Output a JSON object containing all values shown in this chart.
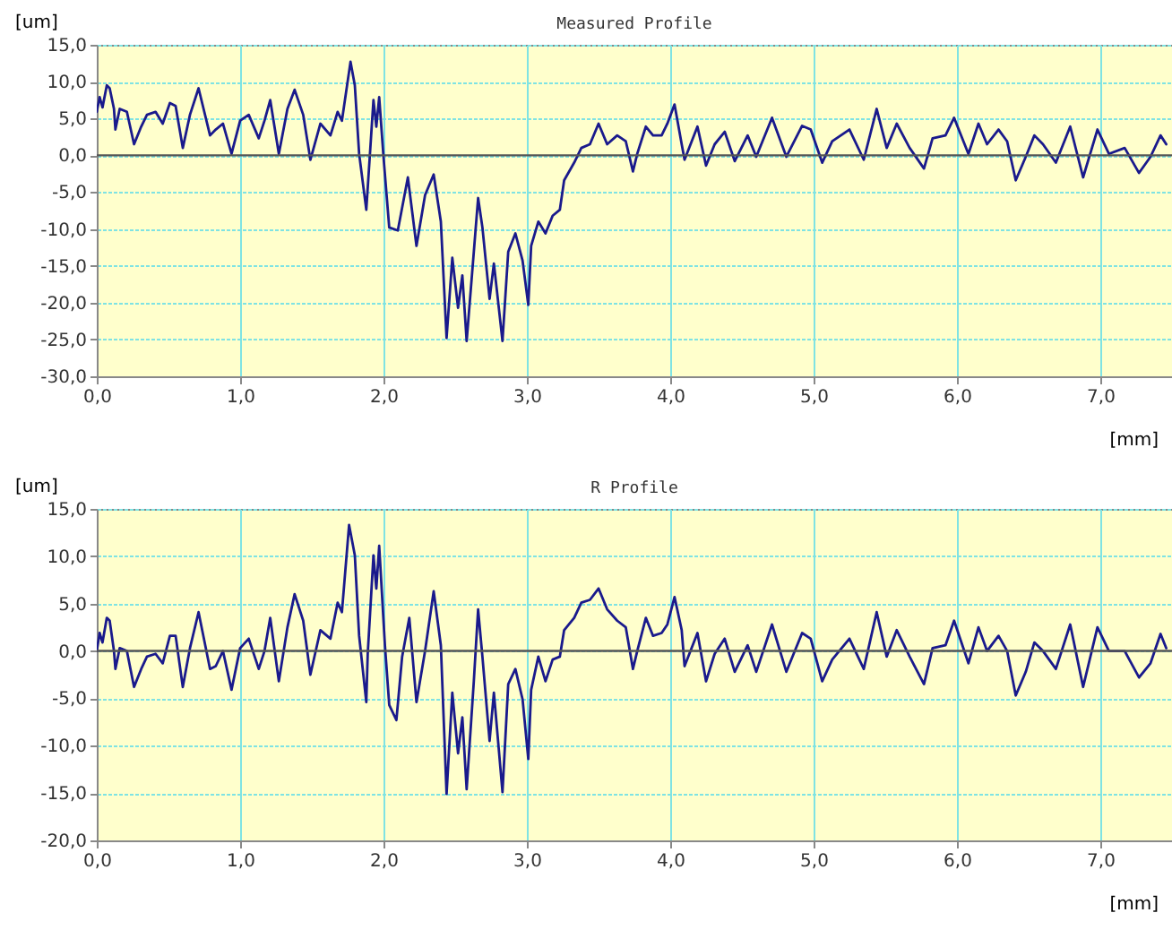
{
  "chart_data": [
    {
      "type": "line",
      "title": "Measured Profile",
      "xlabel": "[mm]",
      "ylabel": "[um]",
      "grid": true,
      "line_style": "solid",
      "xlim": [
        0,
        7.5
      ],
      "xticks": [
        {
          "value": 0,
          "label": "0,0"
        },
        {
          "value": 1,
          "label": "1,0"
        },
        {
          "value": 2,
          "label": "2,0"
        },
        {
          "value": 3,
          "label": "3,0"
        },
        {
          "value": 4,
          "label": "4,0"
        },
        {
          "value": 5,
          "label": "5,0"
        },
        {
          "value": 6,
          "label": "6,0"
        },
        {
          "value": 7,
          "label": "7,0"
        }
      ],
      "ylim": [
        -30,
        15
      ],
      "yticks": [
        {
          "value": -30,
          "label": "-30,0"
        },
        {
          "value": -25,
          "label": "-25,0"
        },
        {
          "value": -20,
          "label": "-20,0"
        },
        {
          "value": -15,
          "label": "-15,0"
        },
        {
          "value": -10,
          "label": "-10,0"
        },
        {
          "value": -5,
          "label": "-5,0"
        },
        {
          "value": 0,
          "label": "0,0"
        },
        {
          "value": 5,
          "label": "5,0"
        },
        {
          "value": 10,
          "label": "10,0"
        },
        {
          "value": 15,
          "label": "15,0"
        }
      ],
      "ref_lines": [
        {
          "axis": "y",
          "value": 0,
          "color": "#555555"
        }
      ],
      "x": [
        0,
        0.02,
        0.04,
        0.07,
        0.09,
        0.12,
        0.13,
        0.16,
        0.21,
        0.26,
        0.31,
        0.35,
        0.41,
        0.46,
        0.51,
        0.55,
        0.6,
        0.65,
        0.71,
        0.79,
        0.83,
        0.88,
        0.94,
        1,
        1.06,
        1.13,
        1.17,
        1.21,
        1.27,
        1.33,
        1.38,
        1.44,
        1.49,
        1.56,
        1.63,
        1.68,
        1.71,
        1.77,
        1.8,
        1.83,
        1.88,
        1.93,
        1.95,
        1.97,
        2,
        2.04,
        2.1,
        2.17,
        2.23,
        2.29,
        2.35,
        2.4,
        2.44,
        2.48,
        2.52,
        2.55,
        2.58,
        2.63,
        2.66,
        2.69,
        2.74,
        2.77,
        2.83,
        2.87,
        2.92,
        2.97,
        3.01,
        3.03,
        3.08,
        3.13,
        3.18,
        3.23,
        3.26,
        3.33,
        3.38,
        3.44,
        3.5,
        3.56,
        3.63,
        3.69,
        3.74,
        3.77,
        3.83,
        3.88,
        3.94,
        3.98,
        4.03,
        4.08,
        4.1,
        4.19,
        4.25,
        4.31,
        4.38,
        4.45,
        4.54,
        4.6,
        4.71,
        4.81,
        4.92,
        4.98,
        5.06,
        5.13,
        5.25,
        5.35,
        5.44,
        5.51,
        5.58,
        5.67,
        5.77,
        5.83,
        5.92,
        5.98,
        6.08,
        6.15,
        6.21,
        6.29,
        6.35,
        6.41,
        6.48,
        6.54,
        6.6,
        6.69,
        6.79,
        6.88,
        6.98,
        7.06,
        7.17,
        7.27,
        7.35,
        7.42,
        7.46
      ],
      "series": [
        {
          "color": "#1a1a8c",
          "values": [
            5.9,
            7.9,
            6.5,
            9.5,
            9.1,
            6.3,
            3.5,
            6.3,
            5.9,
            1.5,
            3.9,
            5.5,
            5.9,
            4.3,
            7.1,
            6.7,
            1.0,
            5.5,
            9.1,
            2.7,
            3.5,
            4.3,
            0.2,
            4.7,
            5.5,
            2.3,
            4.7,
            7.5,
            0.2,
            6.3,
            8.9,
            5.5,
            -0.6,
            4.3,
            2.7,
            5.9,
            4.7,
            12.7,
            9.5,
            0.2,
            -7.4,
            7.5,
            3.9,
            7.9,
            -0.2,
            -9.8,
            -10.2,
            -3.0,
            -12.3,
            -5.4,
            -2.6,
            -9.0,
            -24.8,
            -13.9,
            -20.7,
            -16.3,
            -25.2,
            -13.1,
            -5.8,
            -9.8,
            -19.5,
            -14.7,
            -25.2,
            -13.1,
            -10.6,
            -14.3,
            -20.3,
            -12.3,
            -9.0,
            -10.6,
            -8.2,
            -7.4,
            -3.4,
            -1.0,
            1.0,
            1.5,
            4.3,
            1.5,
            2.7,
            1.9,
            -2.2,
            0.2,
            3.9,
            2.7,
            2.7,
            4.3,
            6.9,
            1.5,
            -0.6,
            3.9,
            -1.4,
            1.5,
            3.2,
            -0.8,
            2.7,
            -0.2,
            5.1,
            -0.2,
            4.0,
            3.5,
            -1.0,
            1.9,
            3.5,
            -0.6,
            6.3,
            1.0,
            4.3,
            1.0,
            -1.8,
            2.3,
            2.7,
            5.1,
            0.2,
            4.3,
            1.5,
            3.5,
            1.9,
            -3.4,
            -0.2,
            2.7,
            1.5,
            -1.0,
            3.9,
            -3.0,
            3.5,
            0.2,
            1.0,
            -2.4,
            -0.2,
            2.7,
            1.5
          ]
        }
      ]
    },
    {
      "type": "line",
      "title": "R Profile",
      "xlabel": "[mm]",
      "ylabel": "[um]",
      "grid": true,
      "line_style": "solid",
      "xlim": [
        0,
        7.5
      ],
      "xticks": [
        {
          "value": 0,
          "label": "0,0"
        },
        {
          "value": 1,
          "label": "1,0"
        },
        {
          "value": 2,
          "label": "2,0"
        },
        {
          "value": 3,
          "label": "3,0"
        },
        {
          "value": 4,
          "label": "4,0"
        },
        {
          "value": 5,
          "label": "5,0"
        },
        {
          "value": 6,
          "label": "6,0"
        },
        {
          "value": 7,
          "label": "7,0"
        }
      ],
      "ylim": [
        -20,
        15
      ],
      "yticks": [
        {
          "value": -20,
          "label": "-20,0"
        },
        {
          "value": -15,
          "label": "-15,0"
        },
        {
          "value": -10,
          "label": "-10,0"
        },
        {
          "value": -5,
          "label": "-5,0"
        },
        {
          "value": 0,
          "label": "0,0"
        },
        {
          "value": 5,
          "label": "5,0"
        },
        {
          "value": 10,
          "label": "10,0"
        },
        {
          "value": 15,
          "label": "15,0"
        }
      ],
      "ref_lines": [
        {
          "axis": "y",
          "value": 0,
          "color": "#555555"
        }
      ],
      "x": [
        0,
        0.02,
        0.04,
        0.07,
        0.09,
        0.12,
        0.13,
        0.16,
        0.21,
        0.26,
        0.31,
        0.35,
        0.41,
        0.46,
        0.51,
        0.55,
        0.6,
        0.65,
        0.71,
        0.79,
        0.83,
        0.88,
        0.94,
        1,
        1.06,
        1.13,
        1.17,
        1.21,
        1.27,
        1.33,
        1.38,
        1.44,
        1.49,
        1.56,
        1.63,
        1.68,
        1.71,
        1.76,
        1.8,
        1.83,
        1.88,
        1.89,
        1.93,
        1.95,
        1.97,
        2.01,
        2.04,
        2.09,
        2.13,
        2.18,
        2.23,
        2.29,
        2.35,
        2.4,
        2.44,
        2.48,
        2.52,
        2.55,
        2.58,
        2.63,
        2.66,
        2.69,
        2.74,
        2.77,
        2.83,
        2.87,
        2.92,
        2.97,
        3.01,
        3.03,
        3.08,
        3.13,
        3.18,
        3.23,
        3.26,
        3.33,
        3.38,
        3.44,
        3.5,
        3.56,
        3.63,
        3.69,
        3.74,
        3.77,
        3.83,
        3.88,
        3.94,
        3.98,
        4.03,
        4.08,
        4.1,
        4.19,
        4.25,
        4.31,
        4.38,
        4.45,
        4.54,
        4.6,
        4.71,
        4.81,
        4.92,
        4.98,
        5.06,
        5.13,
        5.25,
        5.35,
        5.44,
        5.51,
        5.58,
        5.67,
        5.77,
        5.83,
        5.92,
        5.98,
        6.08,
        6.15,
        6.21,
        6.29,
        6.35,
        6.41,
        6.48,
        6.54,
        6.6,
        6.69,
        6.79,
        6.88,
        6.98,
        7.06,
        7.17,
        7.27,
        7.35,
        7.42,
        7.46
      ],
      "series": [
        {
          "color": "#1a1a8c",
          "values": [
            0,
            1.9,
            0.9,
            3.5,
            3.2,
            0,
            -1.9,
            0.3,
            0,
            -3.8,
            -1.9,
            -0.6,
            -0.3,
            -1.3,
            1.6,
            1.6,
            -3.8,
            0.3,
            4.1,
            -1.9,
            -1.6,
            0,
            -4.1,
            0.3,
            1.3,
            -1.9,
            0,
            3.5,
            -3.2,
            2.5,
            6.0,
            3.2,
            -2.5,
            2.2,
            1.3,
            5.1,
            4.1,
            13.3,
            10.1,
            1.6,
            -5.4,
            -0.3,
            10.1,
            6.6,
            11.1,
            0.6,
            -5.7,
            -7.3,
            -0.6,
            3.5,
            -5.4,
            0,
            6.3,
            0.6,
            -15.1,
            -4.4,
            -10.8,
            -7.0,
            -14.6,
            -3.2,
            4.4,
            -0.6,
            -9.5,
            -4.4,
            -14.9,
            -3.5,
            -1.9,
            -5.1,
            -11.4,
            -4.1,
            -0.6,
            -3.2,
            -0.9,
            -0.6,
            2.2,
            3.5,
            5.1,
            5.4,
            6.6,
            4.4,
            3.2,
            2.5,
            -1.9,
            0,
            3.5,
            1.6,
            1.9,
            2.8,
            5.7,
            2.2,
            -1.6,
            1.9,
            -3.2,
            -0.3,
            1.3,
            -2.2,
            0.6,
            -2.2,
            2.8,
            -2.2,
            1.9,
            1.3,
            -3.2,
            -0.9,
            1.3,
            -1.9,
            4.1,
            -0.6,
            2.2,
            -0.6,
            -3.5,
            0.3,
            0.6,
            3.2,
            -1.3,
            2.5,
            0,
            1.6,
            0,
            -4.7,
            -2.2,
            0.9,
            0,
            -1.9,
            2.8,
            -3.8,
            2.5,
            0,
            0,
            -2.8,
            -1.3,
            1.8,
            0.3
          ]
        }
      ]
    }
  ]
}
